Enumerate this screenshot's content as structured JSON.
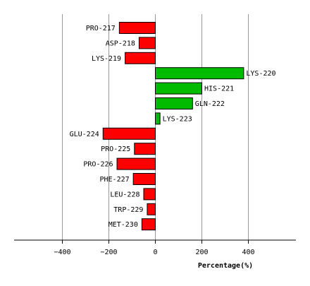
{
  "chart_data": {
    "type": "bar",
    "orientation": "horizontal",
    "xlabel": "Percentage(%)",
    "xlim": [
      -600,
      600
    ],
    "xticks": [
      -400,
      -200,
      0,
      200,
      400
    ],
    "grid": true,
    "positive_color": "#00bb00",
    "negative_color": "#ff0000",
    "categories": [
      "PRO-217",
      "ASP-218",
      "LYS-219",
      "LYS-220",
      "HIS-221",
      "GLN-222",
      "LYS-223",
      "GLU-224",
      "PRO-225",
      "PRO-226",
      "PHE-227",
      "LEU-228",
      "TRP-229",
      "MET-230"
    ],
    "values": [
      -155,
      -70,
      -130,
      380,
      200,
      160,
      20,
      -225,
      -90,
      -165,
      -95,
      -50,
      -35,
      -58
    ]
  }
}
